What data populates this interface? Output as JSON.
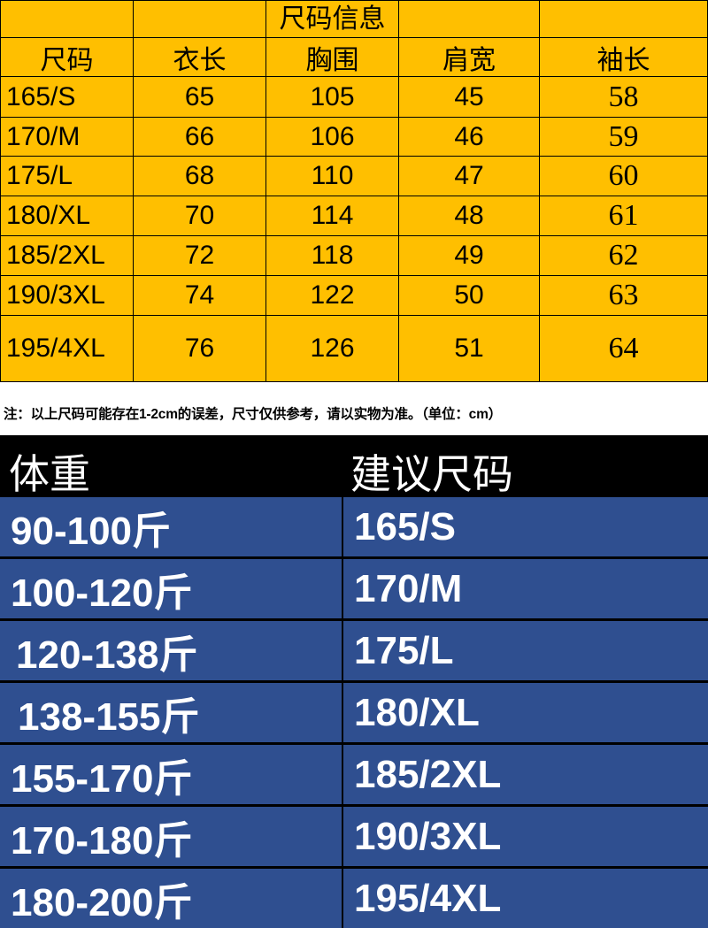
{
  "size_table": {
    "title": "尺码信息",
    "headers": [
      "尺码",
      "衣长",
      "胸围",
      "肩宽",
      "袖长"
    ],
    "rows": [
      [
        "165/S",
        "65",
        "105",
        "45",
        "58"
      ],
      [
        "170/M",
        "66",
        "106",
        "46",
        "59"
      ],
      [
        "175/L",
        "68",
        "110",
        "47",
        "60"
      ],
      [
        "180/XL",
        "70",
        "114",
        "48",
        "61"
      ],
      [
        "185/2XL",
        "72",
        "118",
        "49",
        "62"
      ],
      [
        "190/3XL",
        "74",
        "122",
        "50",
        "63"
      ],
      [
        "195/4XL",
        "76",
        "126",
        "51",
        "64"
      ]
    ],
    "background_color": "#ffbf00"
  },
  "note": "注：以上尺码可能存在1-2cm的误差，尺寸仅供参考，请以实物为准。（单位：cm）",
  "weight_guide": {
    "headers": [
      "体重",
      "建议尺码"
    ],
    "rows": [
      [
        "90-100斤",
        "165/S"
      ],
      [
        "100-120斤",
        "170/M"
      ],
      [
        "120-138斤",
        "175/L"
      ],
      [
        "138-155斤",
        "180/XL"
      ],
      [
        "155-170斤",
        "185/2XL"
      ],
      [
        "170-180斤",
        "190/3XL"
      ],
      [
        "180-200斤",
        "195/4XL"
      ]
    ],
    "header_background": "#000000",
    "row_background": "#2f4f90"
  }
}
